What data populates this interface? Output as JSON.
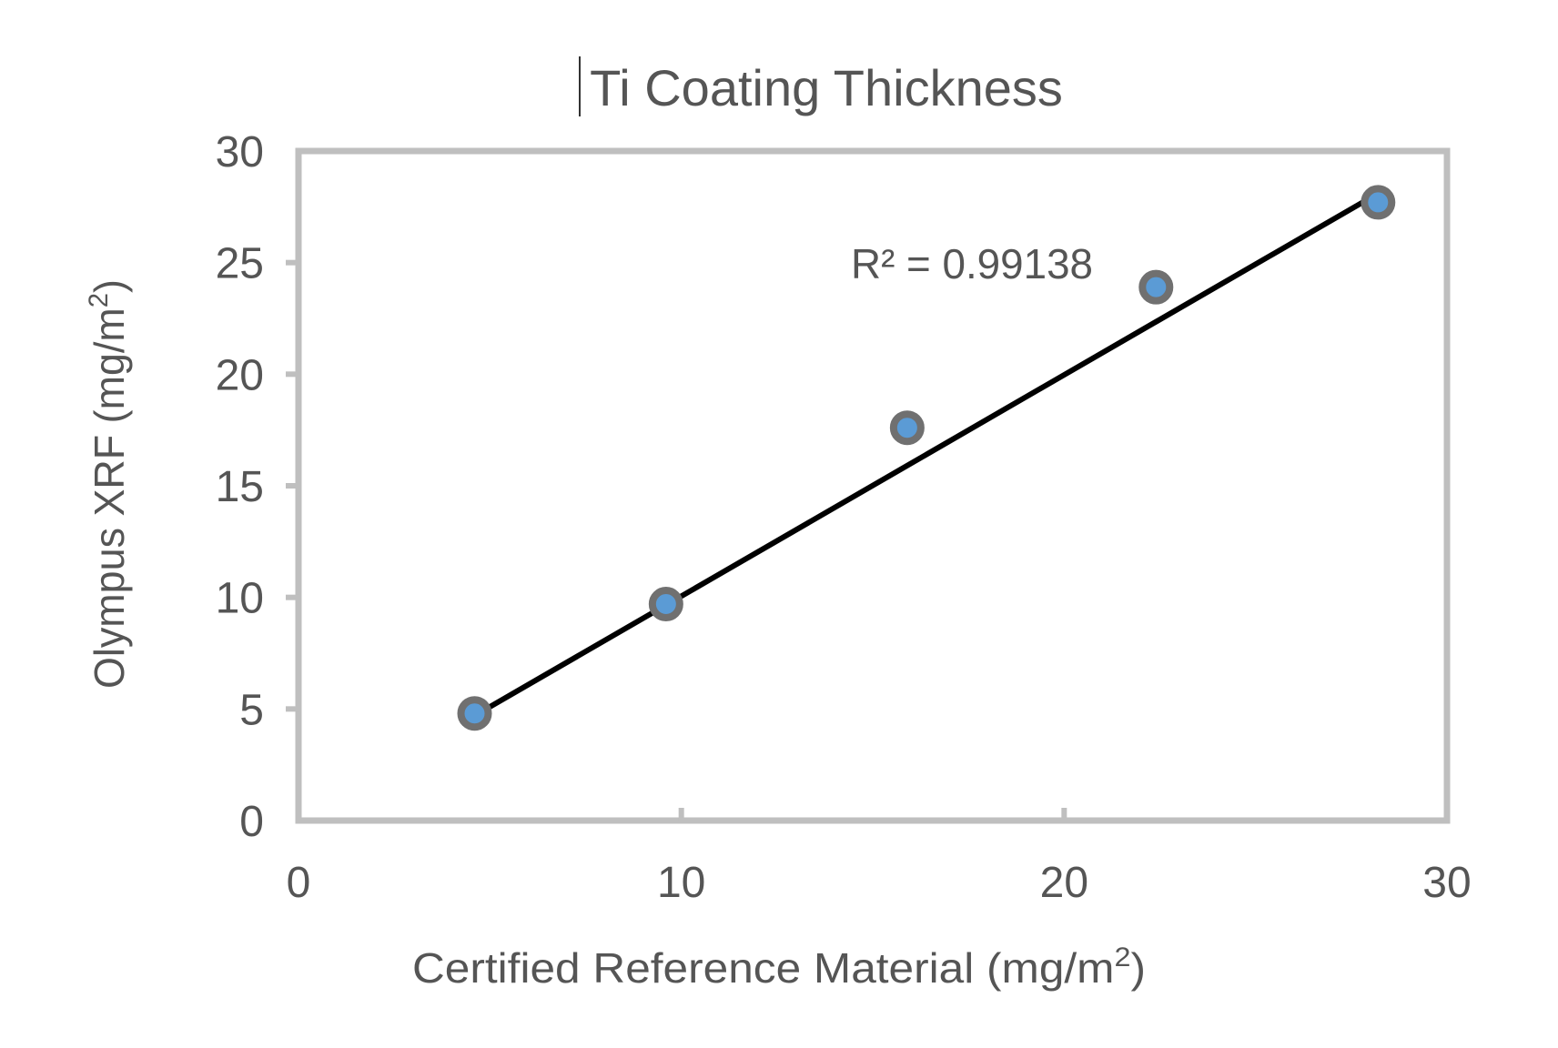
{
  "chart_data": {
    "type": "scatter",
    "title": "Ti Coating Thickness",
    "xlabel": {
      "main": "Certified Reference Material (mg/m",
      "sup": "2",
      "end": ")"
    },
    "ylabel": {
      "main": "Olympus XRF (mg/m",
      "sup": "2",
      "end": ")"
    },
    "xlim": [
      0,
      30
    ],
    "ylim": [
      0,
      30
    ],
    "xticks": [
      0,
      10,
      20,
      30
    ],
    "yticks": [
      0,
      5,
      10,
      15,
      20,
      25,
      30
    ],
    "grid": false,
    "legend": "none",
    "series": [
      {
        "points": [
          {
            "x": 4.6,
            "y": 4.8
          },
          {
            "x": 9.6,
            "y": 9.7
          },
          {
            "x": 15.9,
            "y": 17.6
          },
          {
            "x": 22.4,
            "y": 23.9
          },
          {
            "x": 28.2,
            "y": 27.7
          }
        ],
        "marker_fill": "#5b9bd5",
        "marker_edge": "#707070"
      }
    ],
    "trendline": {
      "type": "linear",
      "from": {
        "x": 4.6,
        "y": 4.7
      },
      "to": {
        "x": 28.3,
        "y": 28.2
      },
      "color": "#000000"
    },
    "annotations": [
      {
        "text": "R² = 0.99138"
      }
    ],
    "frame_color": "#bfbfbf",
    "text_color": "#555555"
  }
}
